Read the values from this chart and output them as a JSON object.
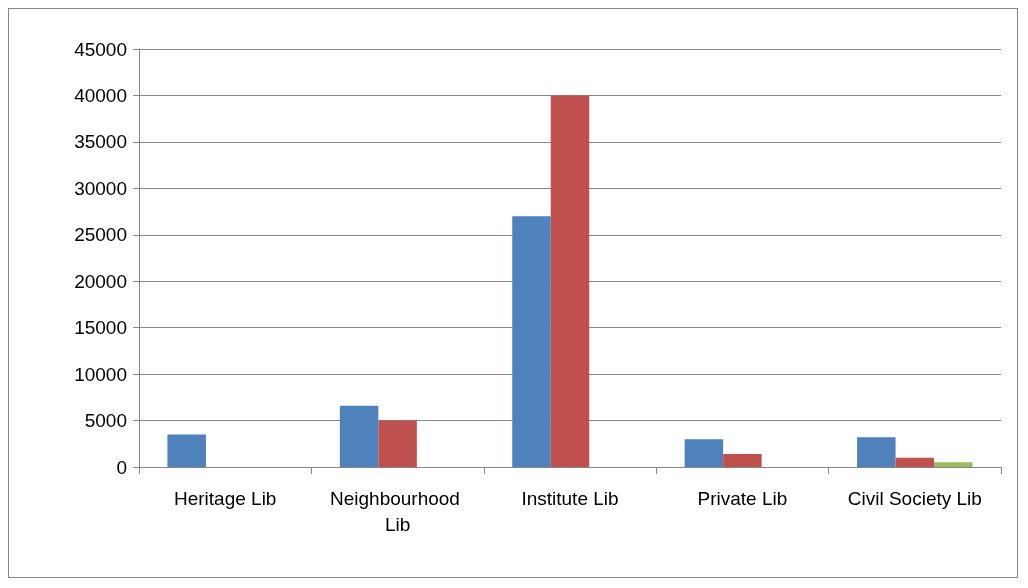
{
  "chart_data": {
    "type": "bar",
    "categories": [
      "Heritage Lib",
      "Neighbourhood Lib",
      "Institute Lib",
      "Private Lib",
      "Civil Society Lib"
    ],
    "series": [
      {
        "color": "#4f81bd",
        "values": [
          3500,
          6600,
          27000,
          3000,
          3200
        ]
      },
      {
        "color": "#c0504d",
        "values": [
          null,
          5000,
          40000,
          1400,
          1000
        ]
      },
      {
        "color": "#9bbb59",
        "values": [
          null,
          null,
          null,
          null,
          500
        ]
      }
    ],
    "ylim": [
      0,
      45000
    ],
    "yticks": [
      0,
      5000,
      10000,
      15000,
      20000,
      25000,
      30000,
      35000,
      40000,
      45000
    ],
    "grid": "y"
  }
}
